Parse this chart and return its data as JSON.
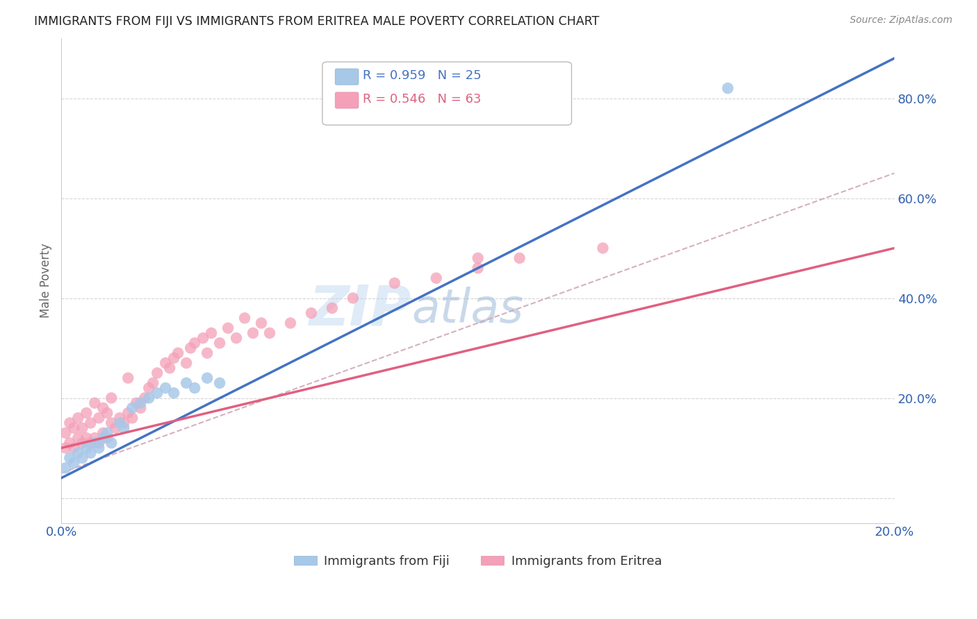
{
  "title": "IMMIGRANTS FROM FIJI VS IMMIGRANTS FROM ERITREA MALE POVERTY CORRELATION CHART",
  "source": "Source: ZipAtlas.com",
  "ylabel": "Male Poverty",
  "xlim": [
    0.0,
    0.2
  ],
  "ylim": [
    -0.05,
    0.92
  ],
  "fiji_color": "#a8c8e8",
  "eritrea_color": "#f4a0b8",
  "fiji_line_color": "#4472c4",
  "eritrea_line_color": "#e06080",
  "diagonal_color": "#d0a8b8",
  "fiji_R": 0.959,
  "fiji_N": 25,
  "eritrea_R": 0.546,
  "eritrea_N": 63,
  "watermark_zip": "ZIP",
  "watermark_atlas": "atlas",
  "grid_color": "#d0d0d0",
  "fiji_scatter_x": [
    0.001,
    0.002,
    0.003,
    0.004,
    0.005,
    0.006,
    0.007,
    0.008,
    0.009,
    0.01,
    0.011,
    0.012,
    0.014,
    0.015,
    0.017,
    0.019,
    0.021,
    0.023,
    0.025,
    0.027,
    0.03,
    0.032,
    0.035,
    0.038,
    0.16
  ],
  "fiji_scatter_y": [
    0.06,
    0.08,
    0.07,
    0.09,
    0.08,
    0.1,
    0.09,
    0.11,
    0.1,
    0.12,
    0.13,
    0.11,
    0.15,
    0.14,
    0.18,
    0.19,
    0.2,
    0.21,
    0.22,
    0.21,
    0.23,
    0.22,
    0.24,
    0.23,
    0.82
  ],
  "eritrea_scatter_x": [
    0.001,
    0.001,
    0.002,
    0.002,
    0.003,
    0.003,
    0.004,
    0.004,
    0.005,
    0.005,
    0.006,
    0.006,
    0.007,
    0.007,
    0.008,
    0.008,
    0.009,
    0.009,
    0.01,
    0.01,
    0.011,
    0.011,
    0.012,
    0.012,
    0.013,
    0.014,
    0.015,
    0.016,
    0.016,
    0.017,
    0.018,
    0.019,
    0.02,
    0.021,
    0.022,
    0.023,
    0.025,
    0.026,
    0.027,
    0.028,
    0.03,
    0.031,
    0.032,
    0.034,
    0.035,
    0.036,
    0.038,
    0.04,
    0.042,
    0.044,
    0.046,
    0.048,
    0.05,
    0.055,
    0.06,
    0.065,
    0.07,
    0.08,
    0.09,
    0.1,
    0.11,
    0.13,
    0.1
  ],
  "eritrea_scatter_y": [
    0.1,
    0.13,
    0.11,
    0.15,
    0.1,
    0.14,
    0.12,
    0.16,
    0.11,
    0.14,
    0.12,
    0.17,
    0.11,
    0.15,
    0.12,
    0.19,
    0.11,
    0.16,
    0.13,
    0.18,
    0.12,
    0.17,
    0.15,
    0.2,
    0.14,
    0.16,
    0.15,
    0.17,
    0.24,
    0.16,
    0.19,
    0.18,
    0.2,
    0.22,
    0.23,
    0.25,
    0.27,
    0.26,
    0.28,
    0.29,
    0.27,
    0.3,
    0.31,
    0.32,
    0.29,
    0.33,
    0.31,
    0.34,
    0.32,
    0.36,
    0.33,
    0.35,
    0.33,
    0.35,
    0.37,
    0.38,
    0.4,
    0.43,
    0.44,
    0.46,
    0.48,
    0.5,
    0.48
  ],
  "fiji_line_x0": 0.0,
  "fiji_line_y0": 0.04,
  "fiji_line_x1": 0.2,
  "fiji_line_y1": 0.88,
  "eritrea_line_x0": 0.0,
  "eritrea_line_y0": 0.1,
  "eritrea_line_x1": 0.2,
  "eritrea_line_y1": 0.5,
  "diag_line_x0": 0.0,
  "diag_line_y0": 0.05,
  "diag_line_x1": 0.2,
  "diag_line_y1": 0.65,
  "yticks": [
    0.0,
    0.2,
    0.4,
    0.6,
    0.8
  ],
  "ytick_labels_right": [
    "",
    "20.0%",
    "40.0%",
    "60.0%",
    "80.0%"
  ],
  "xticks": [
    0.0,
    0.05,
    0.1,
    0.15,
    0.2
  ],
  "xtick_labels": [
    "0.0%",
    "",
    "",
    "",
    "20.0%"
  ]
}
